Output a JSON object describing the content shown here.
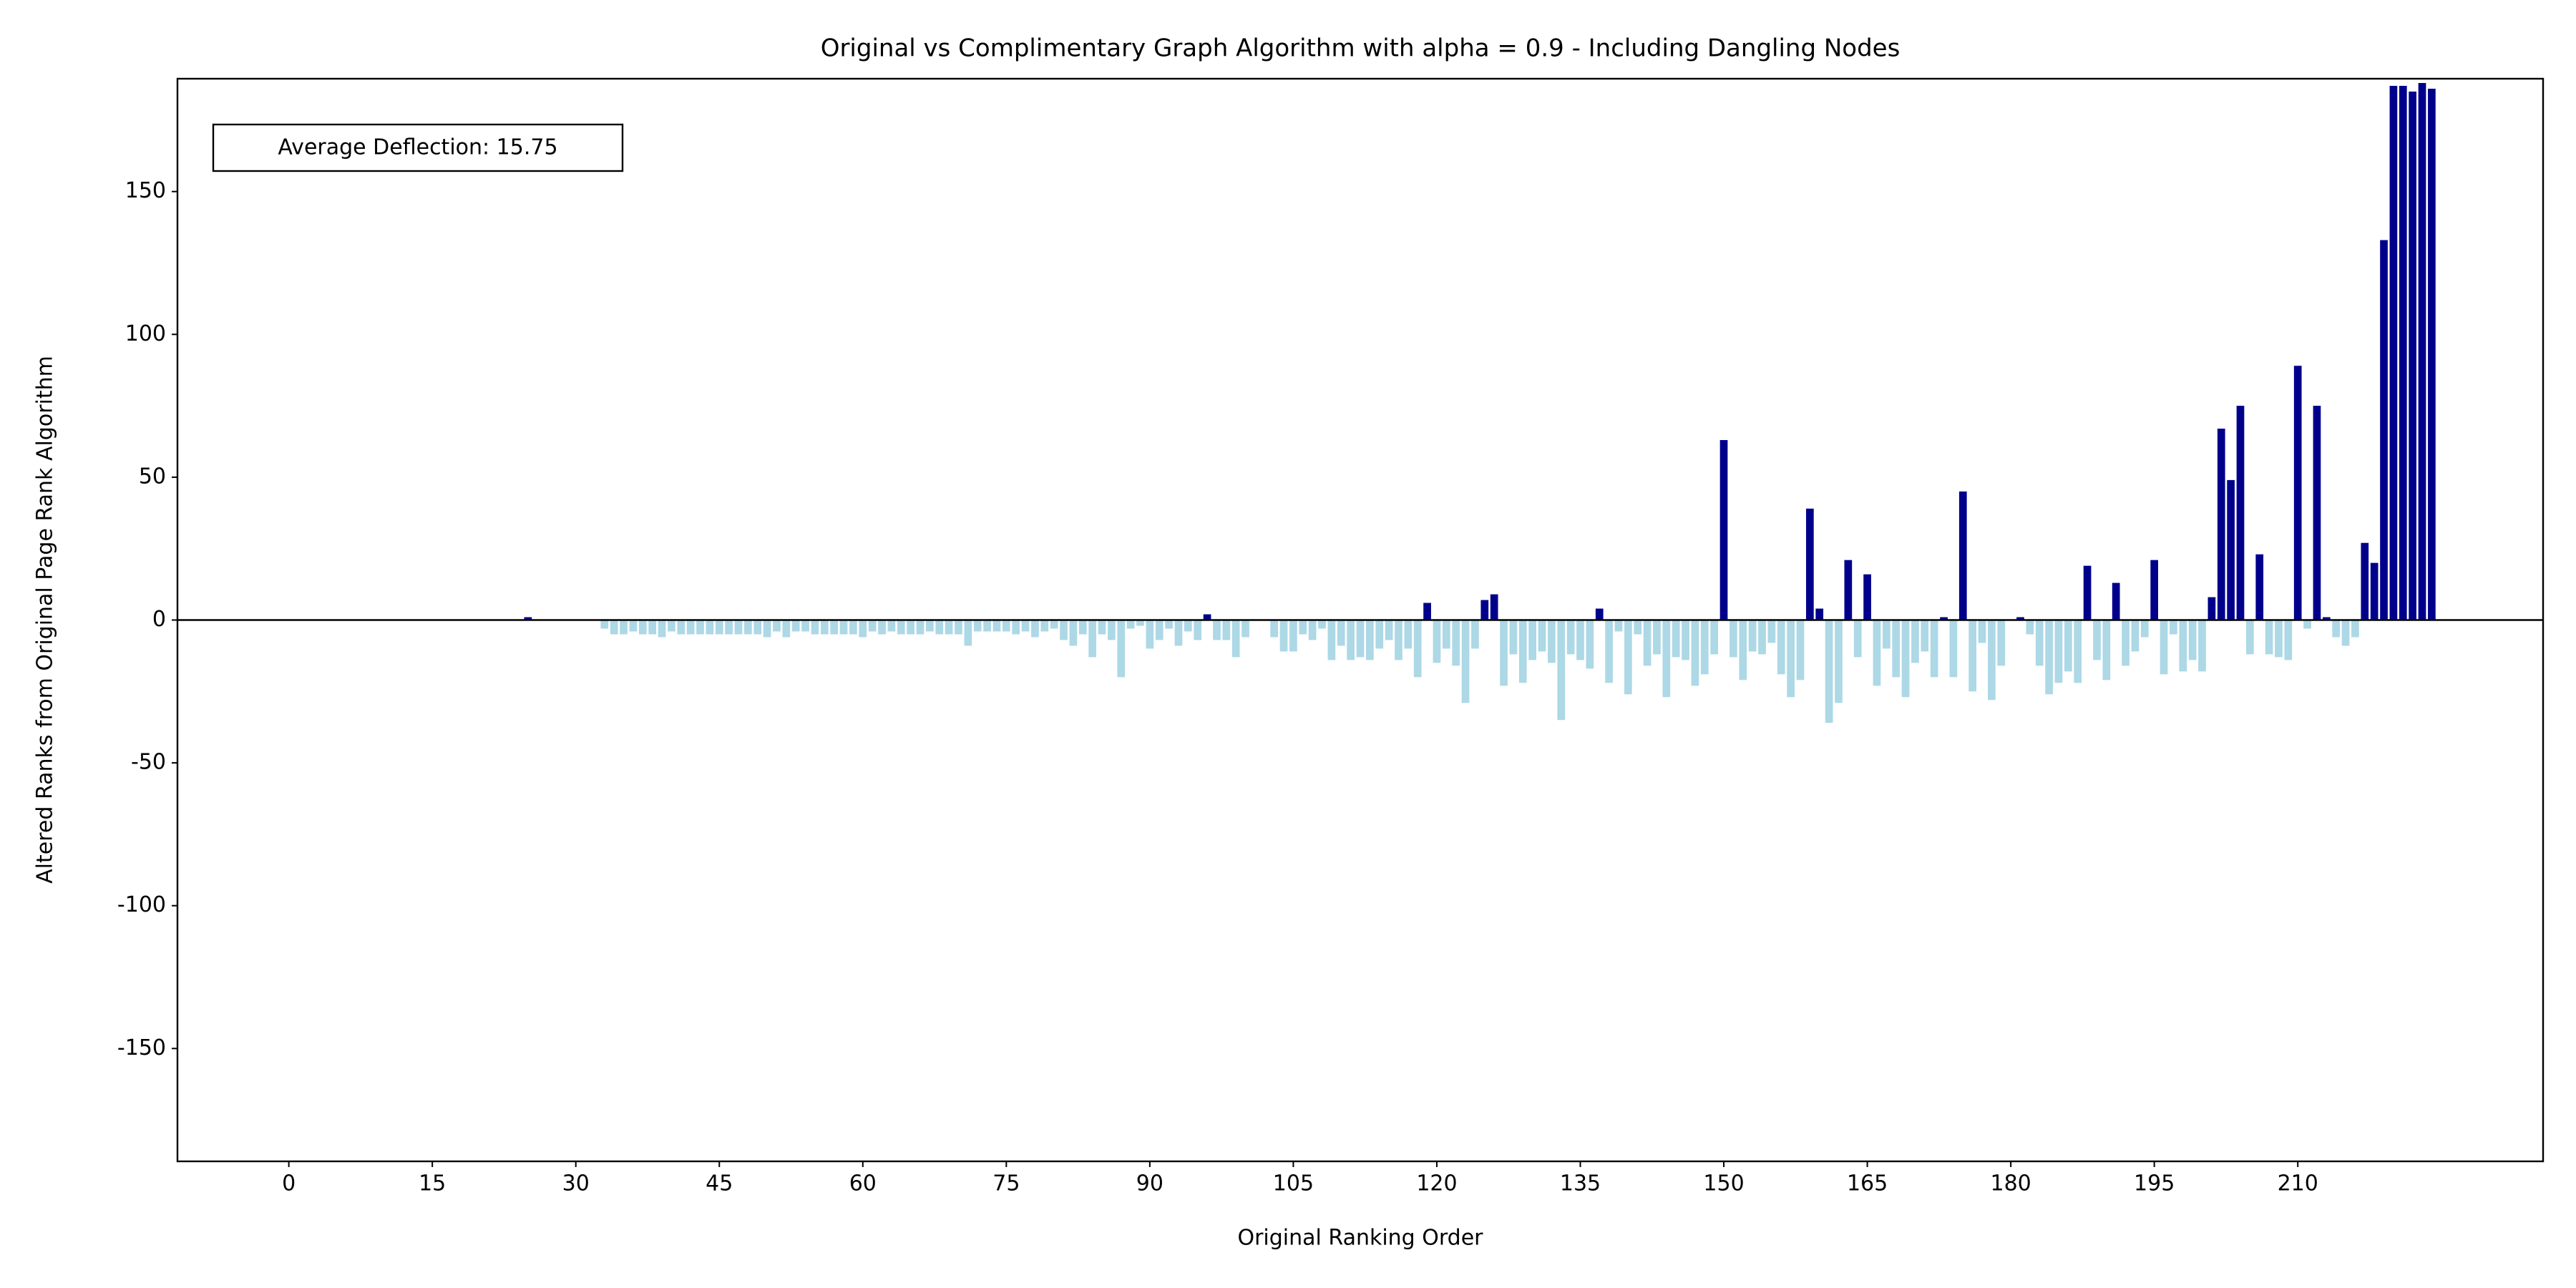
{
  "chart_data": {
    "type": "bar",
    "title": "Original vs Complimentary Graph Algorithm with alpha = 0.9 - Including Dangling Nodes",
    "xlabel": "Original Ranking Order",
    "ylabel": "Altered Ranks from Original Page Rank Algorithm",
    "annotation": "Average Deflection: 15.75",
    "positive_color": "#00008b",
    "negative_color": "#add8e6",
    "x": [
      0,
      1,
      2,
      3,
      4,
      5,
      6,
      7,
      8,
      9,
      10,
      11,
      12,
      13,
      14,
      15,
      16,
      17,
      18,
      19,
      20,
      21,
      22,
      23,
      24,
      25,
      26,
      27,
      28,
      29,
      30,
      31,
      32,
      33,
      34,
      35,
      36,
      37,
      38,
      39,
      40,
      41,
      42,
      43,
      44,
      45,
      46,
      47,
      48,
      49,
      50,
      51,
      52,
      53,
      54,
      55,
      56,
      57,
      58,
      59,
      60,
      61,
      62,
      63,
      64,
      65,
      66,
      67,
      68,
      69,
      70,
      71,
      72,
      73,
      74,
      75,
      76,
      77,
      78,
      79,
      80,
      81,
      82,
      83,
      84,
      85,
      86,
      87,
      88,
      89,
      90,
      91,
      92,
      93,
      94,
      95,
      96,
      97,
      98,
      99,
      100,
      101,
      102,
      103,
      104,
      105,
      106,
      107,
      108,
      109,
      110,
      111,
      112,
      113,
      114,
      115,
      116,
      117,
      118,
      119,
      120,
      121,
      122,
      123,
      124,
      125,
      126,
      127,
      128,
      129,
      130,
      131,
      132,
      133,
      134,
      135,
      136,
      137,
      138,
      139,
      140,
      141,
      142,
      143,
      144,
      145,
      146,
      147,
      148,
      149,
      150,
      151,
      152,
      153,
      154,
      155,
      156,
      157,
      158,
      159,
      160,
      161,
      162,
      163,
      164,
      165,
      166,
      167,
      168,
      169,
      170,
      171,
      172,
      173,
      174,
      175,
      176,
      177,
      178,
      179,
      180,
      181,
      182,
      183,
      184,
      185,
      186,
      187,
      188,
      189,
      190,
      191,
      192,
      193,
      194,
      195,
      196,
      197,
      198,
      199,
      200,
      201,
      202,
      203,
      204,
      205,
      206,
      207,
      208,
      209,
      210,
      211,
      212,
      213,
      214,
      215,
      216,
      217,
      218,
      219,
      220,
      221,
      222,
      223,
      224
    ],
    "values": [
      0,
      0,
      0,
      0,
      0,
      0,
      0,
      0,
      0,
      0,
      0,
      0,
      0,
      0,
      0,
      0,
      0,
      0,
      0,
      0,
      0,
      0,
      0,
      0,
      0,
      1,
      0,
      0,
      0,
      0,
      0,
      0,
      0,
      -3,
      -5,
      -5,
      -4,
      -5,
      -5,
      -6,
      -4,
      -5,
      -5,
      -5,
      -5,
      -5,
      -5,
      -5,
      -5,
      -5,
      -6,
      -4,
      -6,
      -4,
      -4,
      -5,
      -5,
      -5,
      -5,
      -5,
      -6,
      -4,
      -5,
      -4,
      -5,
      -5,
      -5,
      -4,
      -5,
      -5,
      -5,
      -9,
      -4,
      -4,
      -4,
      -4,
      -5,
      -4,
      -6,
      -4,
      -3,
      -7,
      -9,
      -5,
      -13,
      -5,
      -7,
      -20,
      -3,
      -2,
      -10,
      -7,
      -3,
      -9,
      -4,
      -7,
      2,
      -7,
      -7,
      -13,
      -6,
      0,
      0,
      -6,
      -11,
      -11,
      -5,
      -7,
      -3,
      -14,
      -9,
      -14,
      -13,
      -14,
      -10,
      -7,
      -14,
      -10,
      -20,
      6,
      -15,
      -10,
      -16,
      -29,
      -10,
      7,
      9,
      -23,
      -12,
      -22,
      -14,
      -11,
      -15,
      -35,
      -12,
      -14,
      -17,
      4,
      -22,
      -4,
      -26,
      -5,
      -16,
      -12,
      -27,
      -13,
      -14,
      -23,
      -19,
      -12,
      63,
      -13,
      -21,
      -11,
      -12,
      -8,
      -19,
      -27,
      -21,
      39,
      4,
      -36,
      -29,
      21,
      -13,
      16,
      -23,
      -10,
      -20,
      -27,
      -15,
      -11,
      -20,
      1,
      -20,
      45,
      -25,
      -8,
      -28,
      -16,
      0,
      1,
      -5,
      -16,
      -26,
      -22,
      -18,
      -22,
      19,
      -14,
      -21,
      13,
      -16,
      -11,
      -6,
      21,
      -19,
      -5,
      -18,
      -14,
      -18,
      8,
      67,
      49,
      75,
      -12,
      23,
      -12,
      -13,
      -14,
      89,
      -3,
      75,
      1,
      -6,
      -9,
      -6,
      27,
      20,
      133,
      187,
      187,
      185,
      188,
      186
    ],
    "xlim": [
      -11.64,
      235.64
    ],
    "xticks": [
      0,
      15,
      30,
      45,
      60,
      75,
      90,
      105,
      120,
      135,
      150,
      165,
      180,
      195,
      210
    ],
    "ylim": [
      -189.5,
      189.5
    ],
    "yticks": [
      -150,
      -100,
      -50,
      0,
      50,
      100,
      150
    ]
  }
}
